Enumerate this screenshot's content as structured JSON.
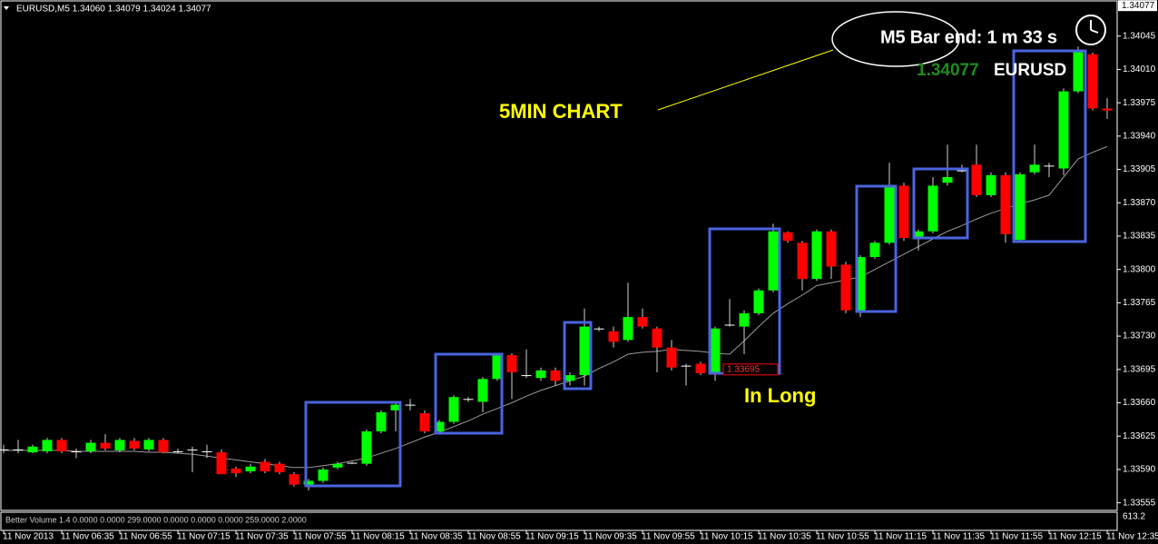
{
  "chart_data": {
    "type": "candlestick",
    "header": "EURUSD,M5  1.34060 1.34079 1.34024 1.34077",
    "timer": "M5 Bar end: 1 m 33 s",
    "price_display": "1.34077",
    "symbol": "EURUSD",
    "annotations": [
      "5MIN CHART",
      "In Long"
    ],
    "indicator_label": "Better Volume 1.4 0.0000 0.0000 299.0000 0.0000 0.0000 0.0000 259.0000 2.0000",
    "indicator_scale": "613.2",
    "last_price": 1.34077,
    "marked_price": 1.33695,
    "up_color": "#00ff00",
    "down_color": "#ff0000",
    "doji_color": "#ffffff",
    "ma_color": "#9a9a9a",
    "categories": [
      "11 Nov 2013",
      null,
      null,
      null,
      "11 Nov 06:35",
      null,
      null,
      null,
      "11 Nov 06:55",
      null,
      null,
      null,
      "11 Nov 07:15",
      null,
      null,
      null,
      "11 Nov 07:35",
      null,
      null,
      null,
      "11 Nov 07:55",
      null,
      null,
      null,
      "11 Nov 08:15",
      null,
      null,
      null,
      "11 Nov 08:35",
      null,
      null,
      null,
      "11 Nov 08:55",
      null,
      null,
      null,
      "11 Nov 09:15",
      null,
      null,
      null,
      "11 Nov 09:35",
      null,
      null,
      null,
      "11 Nov 09:55",
      null,
      null,
      null,
      "11 Nov 10:15",
      null,
      null,
      null,
      "11 Nov 10:35",
      null,
      null,
      null,
      "11 Nov 10:55",
      null,
      null,
      null,
      "11 Nov 11:15",
      null,
      null,
      null,
      "11 Nov 11:35",
      null,
      null,
      null,
      "11 Nov 11:55",
      null,
      null,
      null,
      "11 Nov 12:15",
      null,
      null,
      null,
      "11 Nov 12:35"
    ],
    "open": [
      1.33611,
      1.33611,
      1.33608,
      1.33609,
      1.33621,
      1.33609,
      1.33609,
      1.33618,
      1.3361,
      1.3362,
      1.33611,
      1.33621,
      1.33609,
      1.33611,
      1.33609,
      1.33608,
      1.33591,
      1.33588,
      1.33598,
      1.33596,
      1.33585,
      1.33574,
      1.33578,
      1.33592,
      1.33597,
      1.33596,
      1.3363,
      1.33652,
      1.33658,
      1.33649,
      1.3363,
      1.3364,
      1.33664,
      1.33661,
      1.33685,
      1.3371,
      1.33689,
      1.33686,
      1.33694,
      1.33683,
      1.33689,
      1.33738,
      1.33735,
      1.33726,
      1.3375,
      1.33738,
      1.33718,
      1.33699,
      1.33701,
      1.33692,
      1.33742,
      1.3374,
      1.33754,
      1.33778,
      1.33839,
      1.33828,
      1.3379,
      1.3384,
      1.33805,
      1.33757,
      1.33813,
      1.33828,
      1.33888,
      1.33834,
      1.3384,
      1.33891,
      1.33904,
      1.3391,
      1.33878,
      1.33899,
      1.33831,
      1.33902,
      1.33909,
      1.33906,
      1.33987,
      1.34026,
      1.33969
    ],
    "high": [
      1.33616,
      1.33621,
      1.33616,
      1.33623,
      1.33623,
      1.33612,
      1.33621,
      1.33627,
      1.33623,
      1.33623,
      1.33623,
      1.33623,
      1.33612,
      1.33614,
      1.33616,
      1.33611,
      1.33593,
      1.33596,
      1.33601,
      1.33598,
      1.33587,
      1.3358,
      1.33592,
      1.33598,
      1.33598,
      1.33632,
      1.33652,
      1.3366,
      1.33664,
      1.33652,
      1.33642,
      1.33668,
      1.33666,
      1.33687,
      1.33712,
      1.33712,
      1.33716,
      1.33697,
      1.33697,
      1.33692,
      1.33759,
      1.3374,
      1.3374,
      1.33786,
      1.33759,
      1.3374,
      1.33726,
      1.33701,
      1.33703,
      1.3374,
      1.33769,
      1.33757,
      1.3378,
      1.33848,
      1.3384,
      1.3383,
      1.33842,
      1.33842,
      1.33808,
      1.33815,
      1.3383,
      1.33912,
      1.33891,
      1.33842,
      1.33897,
      1.33931,
      1.3391,
      1.33931,
      1.33902,
      1.33902,
      1.33902,
      1.33931,
      1.33912,
      1.3399,
      1.34034,
      1.34028,
      1.3398
    ],
    "low": [
      1.33607,
      1.33607,
      1.33607,
      1.33607,
      1.33607,
      1.33602,
      1.33607,
      1.3361,
      1.33608,
      1.3361,
      1.33609,
      1.33607,
      1.33607,
      1.33587,
      1.33602,
      1.33585,
      1.33582,
      1.33586,
      1.33586,
      1.33585,
      1.33572,
      1.33568,
      1.33576,
      1.3359,
      1.33596,
      1.33594,
      1.33628,
      1.3363,
      1.33652,
      1.33628,
      1.33628,
      1.33638,
      1.33661,
      1.3365,
      1.33683,
      1.33664,
      1.33686,
      1.33683,
      1.33678,
      1.33678,
      1.33678,
      1.33735,
      1.33718,
      1.33724,
      1.33738,
      1.33692,
      1.33694,
      1.33678,
      1.33689,
      1.33683,
      1.3374,
      1.33711,
      1.33752,
      1.33776,
      1.33828,
      1.33778,
      1.33788,
      1.3379,
      1.33754,
      1.3375,
      1.33811,
      1.33826,
      1.3383,
      1.3382,
      1.33838,
      1.33888,
      1.33902,
      1.33876,
      1.33876,
      1.33828,
      1.33828,
      1.339,
      1.33897,
      1.33899,
      1.33985,
      1.33967,
      1.33958
    ],
    "close": [
      1.33611,
      1.33611,
      1.33614,
      1.33621,
      1.33609,
      1.33609,
      1.33618,
      1.33612,
      1.33621,
      1.33612,
      1.33621,
      1.33608,
      1.33609,
      1.33611,
      1.33609,
      1.33585,
      1.33586,
      1.33593,
      1.33588,
      1.33587,
      1.33574,
      1.33578,
      1.3359,
      1.33596,
      1.33597,
      1.3363,
      1.3365,
      1.33658,
      1.33658,
      1.3363,
      1.3364,
      1.33666,
      1.33664,
      1.33685,
      1.3371,
      1.33692,
      1.33689,
      1.33694,
      1.33683,
      1.33689,
      1.3374,
      1.33738,
      1.33724,
      1.3375,
      1.3374,
      1.33718,
      1.33697,
      1.33699,
      1.33691,
      1.33738,
      1.33742,
      1.33754,
      1.33778,
      1.3384,
      1.3383,
      1.3379,
      1.3384,
      1.33803,
      1.33757,
      1.33813,
      1.33828,
      1.33888,
      1.33833,
      1.3384,
      1.33888,
      1.33897,
      1.33904,
      1.33878,
      1.33899,
      1.33837,
      1.339,
      1.3391,
      1.33909,
      1.33987,
      1.34028,
      1.33969,
      1.33967
    ],
    "ma": [
      1.3361,
      1.3361,
      1.3361,
      1.3361,
      1.3361,
      1.33609,
      1.33609,
      1.33609,
      1.33609,
      1.33609,
      1.33608,
      1.33608,
      1.33607,
      1.33606,
      1.33604,
      1.33602,
      1.336,
      1.33598,
      1.33596,
      1.33594,
      1.33592,
      1.33592,
      1.33594,
      1.33596,
      1.33599,
      1.33602,
      1.33607,
      1.33612,
      1.33618,
      1.33624,
      1.33629,
      1.33635,
      1.33641,
      1.33648,
      1.33654,
      1.3366,
      1.33667,
      1.33673,
      1.33678,
      1.33683,
      1.33688,
      1.33696,
      1.33703,
      1.33711,
      1.33713,
      1.33714,
      1.33716,
      1.33715,
      1.33714,
      1.33712,
      1.33711,
      1.33725,
      1.3374,
      1.33754,
      1.33764,
      1.33773,
      1.33783,
      1.33786,
      1.33789,
      1.33792,
      1.338,
      1.33808,
      1.33816,
      1.33824,
      1.33832,
      1.3384,
      1.33846,
      1.33853,
      1.33859,
      1.33864,
      1.33869,
      1.33873,
      1.33878,
      1.33897,
      1.33916,
      1.33923,
      1.33929
    ],
    "ylim": [
      1.33547,
      1.34081
    ],
    "yticks": [
      1.34045,
      {
        "value": 1.3401,
        "label": "1.34010"
      },
      1.33975,
      {
        "value": 1.3394,
        "label": "1.33940"
      },
      1.33905,
      {
        "value": 1.3387,
        "label": "1.33870"
      },
      1.33835,
      {
        "value": 1.338,
        "label": "1.33800"
      },
      1.33765,
      {
        "value": 1.3373,
        "label": "1.33730"
      },
      1.33695,
      {
        "value": 1.3366,
        "label": "1.33660"
      },
      1.33625,
      {
        "value": 1.3359,
        "label": "1.33590"
      },
      1.33555
    ],
    "grid": false
  }
}
